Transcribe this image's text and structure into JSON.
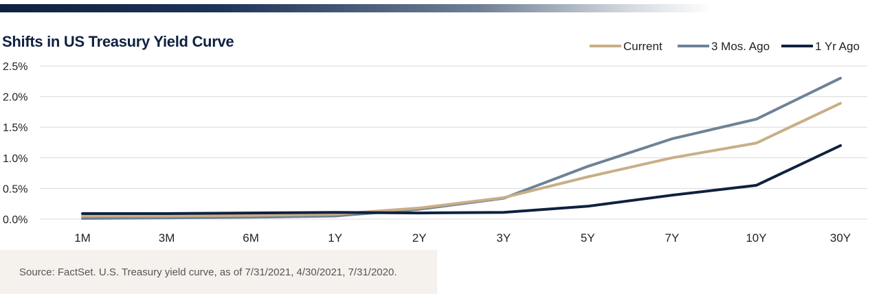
{
  "title": "Shifts in US Treasury Yield Curve",
  "source": "Source: FactSet. U.S. Treasury yield curve, as of 7/31/2021, 4/30/2021, 7/31/2020.",
  "colors": {
    "current": "#c9ae86",
    "three_months": "#6e8296",
    "one_year": "#0f2140",
    "grid": "#d9d9d9"
  },
  "chart_data": {
    "type": "line",
    "title": "Shifts in US Treasury Yield Curve",
    "xlabel": "",
    "ylabel": "",
    "categories": [
      "1M",
      "3M",
      "6M",
      "1Y",
      "2Y",
      "3Y",
      "5Y",
      "7Y",
      "10Y",
      "30Y"
    ],
    "ylim": [
      0,
      2.5
    ],
    "yticks": [
      "0.0%",
      "0.5%",
      "1.0%",
      "1.5%",
      "2.0%",
      "2.5%"
    ],
    "grid": true,
    "legend_position": "top-right",
    "series": [
      {
        "name": "Current",
        "color": "#c9ae86",
        "values": [
          0.05,
          0.05,
          0.06,
          0.08,
          0.18,
          0.35,
          0.69,
          1.0,
          1.24,
          1.89
        ]
      },
      {
        "name": "3 Mos. Ago",
        "color": "#6e8296",
        "values": [
          0.01,
          0.02,
          0.03,
          0.05,
          0.16,
          0.34,
          0.86,
          1.31,
          1.63,
          2.3
        ]
      },
      {
        "name": "1 Yr Ago",
        "color": "#0f2140",
        "values": [
          0.09,
          0.09,
          0.1,
          0.11,
          0.1,
          0.11,
          0.21,
          0.39,
          0.55,
          1.2
        ]
      }
    ]
  }
}
